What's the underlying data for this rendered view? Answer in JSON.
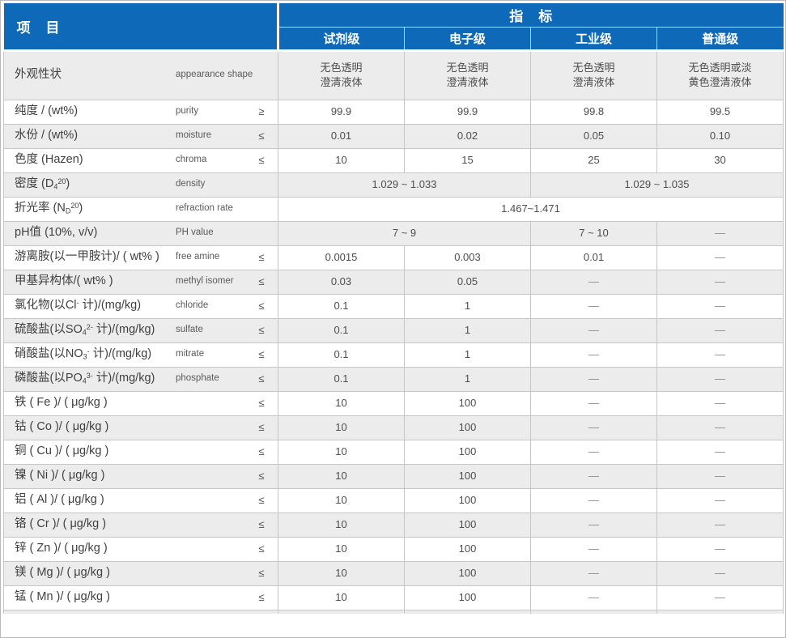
{
  "colors": {
    "header_bg": "#0e69b8",
    "header_divider": "#cfcfcf",
    "border": "#c6c6c6",
    "row_alt": "#ececec",
    "text": "#3f3f3f",
    "value_text": "#4d4d4d",
    "dash": "#8a8a8a"
  },
  "table": {
    "header": {
      "item_label": "项　目",
      "spec_label": "指　标",
      "grades": [
        "试剂级",
        "电子级",
        "工业级",
        "普通级"
      ]
    },
    "rows": [
      {
        "zh": "外观性状",
        "en": "appearance shape",
        "op": "",
        "cells": [
          {
            "t": "无色透明\n澄清液体",
            "span": 1
          },
          {
            "t": "无色透明\n澄清液体",
            "span": 1
          },
          {
            "t": "无色透明\n澄清液体",
            "span": 1
          },
          {
            "t": "无色透明或淡\n黄色澄清液体",
            "span": 1
          }
        ]
      },
      {
        "zh": "纯度 / (wt%)",
        "en": "purity",
        "op": "≥",
        "cells": [
          {
            "t": "99.9",
            "span": 1
          },
          {
            "t": "99.9",
            "span": 1
          },
          {
            "t": "99.8",
            "span": 1
          },
          {
            "t": "99.5",
            "span": 1
          }
        ]
      },
      {
        "zh": "水份 / (wt%)",
        "en": "moisture",
        "op": "≤",
        "cells": [
          {
            "t": "0.01",
            "span": 1
          },
          {
            "t": "0.02",
            "span": 1
          },
          {
            "t": "0.05",
            "span": 1
          },
          {
            "t": "0.10",
            "span": 1
          }
        ]
      },
      {
        "zh": "色度 (Hazen)",
        "en": "chroma",
        "op": "≤",
        "cells": [
          {
            "t": "10",
            "span": 1
          },
          {
            "t": "15",
            "span": 1
          },
          {
            "t": "25",
            "span": 1
          },
          {
            "t": "30",
            "span": 1
          }
        ]
      },
      {
        "zh": "密度 (D_{4}^{20})",
        "en": "density",
        "op": "",
        "cells": [
          {
            "t": "1.029 ~ 1.033",
            "span": 2
          },
          {
            "t": "1.029 ~ 1.035",
            "span": 2
          }
        ]
      },
      {
        "zh": "折光率 (N_{D}^{20})",
        "en": "refraction rate",
        "op": "",
        "cells": [
          {
            "t": "1.467~1.471",
            "span": 4
          }
        ]
      },
      {
        "zh": "pH值 (10%, v/v)",
        "en": "PH value",
        "op": "",
        "cells": [
          {
            "t": "7 ~ 9",
            "span": 2
          },
          {
            "t": "7 ~ 10",
            "span": 1
          },
          {
            "t": "—",
            "span": 1
          }
        ]
      },
      {
        "zh": "游离胺(以一甲胺计)/ ( wt% )",
        "en": "free amine",
        "op": "≤",
        "cells": [
          {
            "t": "0.0015",
            "span": 1
          },
          {
            "t": "0.003",
            "span": 1
          },
          {
            "t": "0.01",
            "span": 1
          },
          {
            "t": "—",
            "span": 1
          }
        ]
      },
      {
        "zh": "甲基异构体/( wt% )",
        "en": "methyl isomer",
        "op": "≤",
        "cells": [
          {
            "t": "0.03",
            "span": 1
          },
          {
            "t": "0.05",
            "span": 1
          },
          {
            "t": "—",
            "span": 1
          },
          {
            "t": "—",
            "span": 1
          }
        ]
      },
      {
        "zh": "氯化物(以Cl^{-} 计)/(mg/kg)",
        "en": "chloride",
        "op": "≤",
        "cells": [
          {
            "t": "0.1",
            "span": 1
          },
          {
            "t": "1",
            "span": 1
          },
          {
            "t": "—",
            "span": 1
          },
          {
            "t": "—",
            "span": 1
          }
        ]
      },
      {
        "zh": "硫酸盐(以SO_{4}^{2-} 计)/(mg/kg)",
        "en": "sulfate",
        "op": "≤",
        "cells": [
          {
            "t": "0.1",
            "span": 1
          },
          {
            "t": "1",
            "span": 1
          },
          {
            "t": "—",
            "span": 1
          },
          {
            "t": "—",
            "span": 1
          }
        ]
      },
      {
        "zh": "硝酸盐(以NO_{3}^{-} 计)/(mg/kg)",
        "en": "mitrate",
        "op": "≤",
        "cells": [
          {
            "t": "0.1",
            "span": 1
          },
          {
            "t": "1",
            "span": 1
          },
          {
            "t": "—",
            "span": 1
          },
          {
            "t": "—",
            "span": 1
          }
        ]
      },
      {
        "zh": "磷酸盐(以PO_{4}^{3-} 计)/(mg/kg)",
        "en": "phosphate",
        "op": "≤",
        "cells": [
          {
            "t": "0.1",
            "span": 1
          },
          {
            "t": "1",
            "span": 1
          },
          {
            "t": "—",
            "span": 1
          },
          {
            "t": "—",
            "span": 1
          }
        ]
      },
      {
        "zh": "铁 ( Fe )/ ( μg/kg )",
        "en": "",
        "op": "≤",
        "cells": [
          {
            "t": "10",
            "span": 1
          },
          {
            "t": "100",
            "span": 1
          },
          {
            "t": "—",
            "span": 1
          },
          {
            "t": "—",
            "span": 1
          }
        ]
      },
      {
        "zh": "钴 ( Co )/ ( μg/kg )",
        "en": "",
        "op": "≤",
        "cells": [
          {
            "t": "10",
            "span": 1
          },
          {
            "t": "100",
            "span": 1
          },
          {
            "t": "—",
            "span": 1
          },
          {
            "t": "—",
            "span": 1
          }
        ]
      },
      {
        "zh": "铜 ( Cu )/ ( μg/kg )",
        "en": "",
        "op": "≤",
        "cells": [
          {
            "t": "10",
            "span": 1
          },
          {
            "t": "100",
            "span": 1
          },
          {
            "t": "—",
            "span": 1
          },
          {
            "t": "—",
            "span": 1
          }
        ]
      },
      {
        "zh": "镍 ( Ni )/ ( μg/kg )",
        "en": "",
        "op": "≤",
        "cells": [
          {
            "t": "10",
            "span": 1
          },
          {
            "t": "100",
            "span": 1
          },
          {
            "t": "—",
            "span": 1
          },
          {
            "t": "—",
            "span": 1
          }
        ]
      },
      {
        "zh": "铝 ( Al )/ ( μg/kg )",
        "en": "",
        "op": "≤",
        "cells": [
          {
            "t": "10",
            "span": 1
          },
          {
            "t": "100",
            "span": 1
          },
          {
            "t": "—",
            "span": 1
          },
          {
            "t": "—",
            "span": 1
          }
        ]
      },
      {
        "zh": "铬 ( Cr )/ ( μg/kg )",
        "en": "",
        "op": "≤",
        "cells": [
          {
            "t": "10",
            "span": 1
          },
          {
            "t": "100",
            "span": 1
          },
          {
            "t": "—",
            "span": 1
          },
          {
            "t": "—",
            "span": 1
          }
        ]
      },
      {
        "zh": "锌 ( Zn )/ ( μg/kg )",
        "en": "",
        "op": "≤",
        "cells": [
          {
            "t": "10",
            "span": 1
          },
          {
            "t": "100",
            "span": 1
          },
          {
            "t": "—",
            "span": 1
          },
          {
            "t": "—",
            "span": 1
          }
        ]
      },
      {
        "zh": "镁 ( Mg )/ ( μg/kg )",
        "en": "",
        "op": "≤",
        "cells": [
          {
            "t": "10",
            "span": 1
          },
          {
            "t": "100",
            "span": 1
          },
          {
            "t": "—",
            "span": 1
          },
          {
            "t": "—",
            "span": 1
          }
        ]
      },
      {
        "zh": "锰 ( Mn )/ ( μg/kg )",
        "en": "",
        "op": "≤",
        "cells": [
          {
            "t": "10",
            "span": 1
          },
          {
            "t": "100",
            "span": 1
          },
          {
            "t": "—",
            "span": 1
          },
          {
            "t": "—",
            "span": 1
          }
        ]
      }
    ]
  }
}
